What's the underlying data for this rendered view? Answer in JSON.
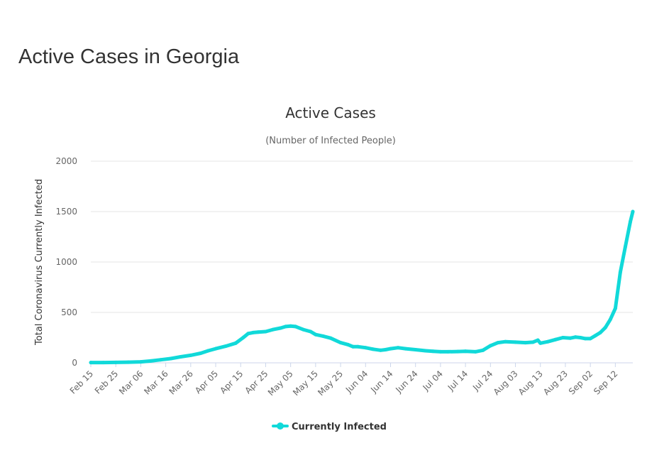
{
  "page": {
    "title": "Active Cases in Georgia"
  },
  "colors": {
    "series": "#11d9d9",
    "grid": "#e6e6e6",
    "axis": "#ccd6eb"
  },
  "chart_data": {
    "type": "line",
    "title": "Active Cases",
    "subtitle": "(Number of Infected People)",
    "xlabel": "",
    "ylabel": "Total Coronavirus Currently Infected",
    "ylim": [
      0,
      2000
    ],
    "yticks": [
      0,
      500,
      1000,
      1500,
      2000
    ],
    "grid": true,
    "legend_position": "bottom-center",
    "xlim": [
      "2020-02-15",
      "2020-09-19"
    ],
    "xticks": [
      "Feb 15",
      "Feb 25",
      "Mar 06",
      "Mar 16",
      "Mar 26",
      "Apr 05",
      "Apr 15",
      "Apr 25",
      "May 05",
      "May 15",
      "May 25",
      "Jun 04",
      "Jun 14",
      "Jun 24",
      "Jul 04",
      "Jul 14",
      "Jul 24",
      "Aug 03",
      "Aug 13",
      "Aug 23",
      "Sep 02",
      "Sep 12"
    ],
    "series": [
      {
        "name": "Currently Infected",
        "color": "#11d9d9",
        "x": [
          "2020-02-15",
          "2020-02-20",
          "2020-02-25",
          "2020-03-01",
          "2020-03-06",
          "2020-03-10",
          "2020-03-14",
          "2020-03-18",
          "2020-03-22",
          "2020-03-26",
          "2020-03-30",
          "2020-04-02",
          "2020-04-05",
          "2020-04-09",
          "2020-04-13",
          "2020-04-16",
          "2020-04-18",
          "2020-04-20",
          "2020-04-22",
          "2020-04-25",
          "2020-04-28",
          "2020-05-01",
          "2020-05-03",
          "2020-05-05",
          "2020-05-07",
          "2020-05-10",
          "2020-05-13",
          "2020-05-15",
          "2020-05-18",
          "2020-05-21",
          "2020-05-25",
          "2020-05-28",
          "2020-05-30",
          "2020-06-01",
          "2020-06-04",
          "2020-06-07",
          "2020-06-10",
          "2020-06-12",
          "2020-06-14",
          "2020-06-17",
          "2020-06-20",
          "2020-06-24",
          "2020-06-28",
          "2020-07-01",
          "2020-07-04",
          "2020-07-07",
          "2020-07-11",
          "2020-07-14",
          "2020-07-18",
          "2020-07-21",
          "2020-07-24",
          "2020-07-27",
          "2020-07-30",
          "2020-08-03",
          "2020-08-07",
          "2020-08-10",
          "2020-08-12",
          "2020-08-13",
          "2020-08-16",
          "2020-08-19",
          "2020-08-22",
          "2020-08-25",
          "2020-08-27",
          "2020-08-29",
          "2020-08-31",
          "2020-09-02",
          "2020-09-04",
          "2020-09-06",
          "2020-09-08",
          "2020-09-10",
          "2020-09-12",
          "2020-09-14",
          "2020-09-16",
          "2020-09-18",
          "2020-09-19"
        ],
        "values": [
          3,
          3,
          4,
          6,
          10,
          18,
          30,
          42,
          60,
          75,
          95,
          120,
          140,
          165,
          195,
          250,
          290,
          300,
          305,
          310,
          330,
          345,
          360,
          365,
          360,
          330,
          310,
          280,
          265,
          245,
          200,
          180,
          160,
          160,
          150,
          135,
          125,
          130,
          140,
          150,
          140,
          130,
          120,
          115,
          110,
          110,
          112,
          115,
          110,
          125,
          170,
          200,
          210,
          205,
          200,
          205,
          225,
          195,
          210,
          230,
          250,
          245,
          255,
          250,
          240,
          240,
          270,
          300,
          350,
          430,
          540,
          900,
          1150,
          1400,
          1500
        ]
      }
    ]
  }
}
